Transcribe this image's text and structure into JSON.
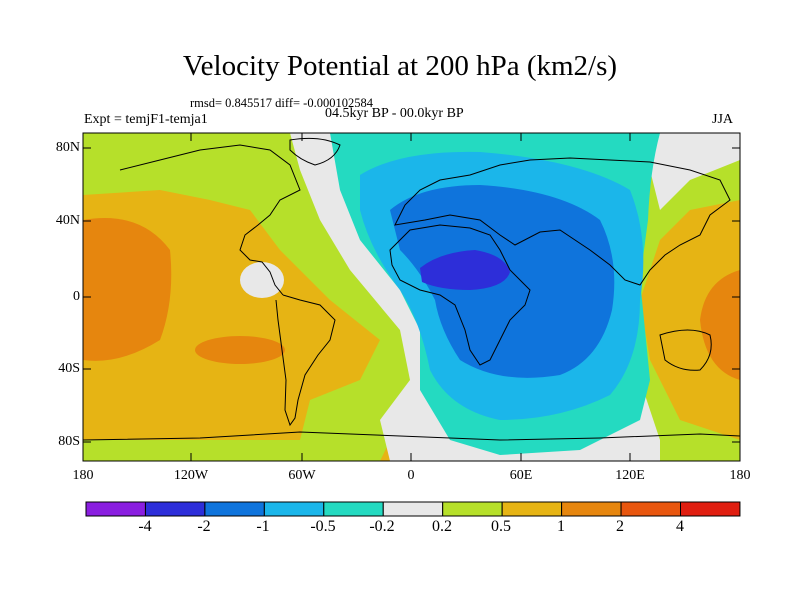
{
  "title": "Velocity Potential at 200 hPa (km2/s)",
  "stats": "rmsd= 0.845517 diff= -0.000102584",
  "experiment": "Expt = temjF1-temja1",
  "period": "04.5kyr BP - 00.0kyr BP",
  "season": "JJA",
  "axes": {
    "y_ticks": [
      "80N",
      "40N",
      "0",
      "40S",
      "80S"
    ],
    "x_ticks": [
      "180",
      "120W",
      "60W",
      "0",
      "60E",
      "120E",
      "180"
    ]
  },
  "colorbar": {
    "colors": [
      "#8a1ee0",
      "#2d2ed9",
      "#0f74dc",
      "#1bb6ea",
      "#24dac1",
      "#e8e8e8",
      "#b6e02a",
      "#e6b414",
      "#e6860e",
      "#e8560e",
      "#e01e10"
    ],
    "labels": [
      "-4",
      "-2",
      "-1",
      "-0.5",
      "-0.2",
      "0.2",
      "0.5",
      "1",
      "2",
      "4"
    ]
  },
  "chart_data": {
    "type": "heatmap",
    "title": "Velocity Potential at 200 hPa (km2/s)",
    "projection": "cylindrical equidistant",
    "x_range": [
      -180,
      180
    ],
    "y_range": [
      -90,
      90
    ],
    "levels": [
      -4,
      -2,
      -1,
      -0.5,
      -0.2,
      0.2,
      0.5,
      1,
      2,
      4
    ],
    "rmsd": 0.845517,
    "diff": -0.000102584,
    "features": [
      {
        "region": "North Africa / Sahel",
        "approx_center": [
          30,
          15
        ],
        "bin": "-4 to -2"
      },
      {
        "region": "Africa, Atlantic, Indian Ocean",
        "bin": "-2 to -0.2"
      },
      {
        "region": "Eastern Pacific",
        "approx_center": [
          -155,
          5
        ],
        "bin": "1 to 2"
      },
      {
        "region": "Western Pacific",
        "approx_center": [
          165,
          0
        ],
        "bin": "1 to 2"
      },
      {
        "region": "South Pacific",
        "approx_center": [
          -100,
          -30
        ],
        "bin": "1 to 2"
      }
    ]
  }
}
